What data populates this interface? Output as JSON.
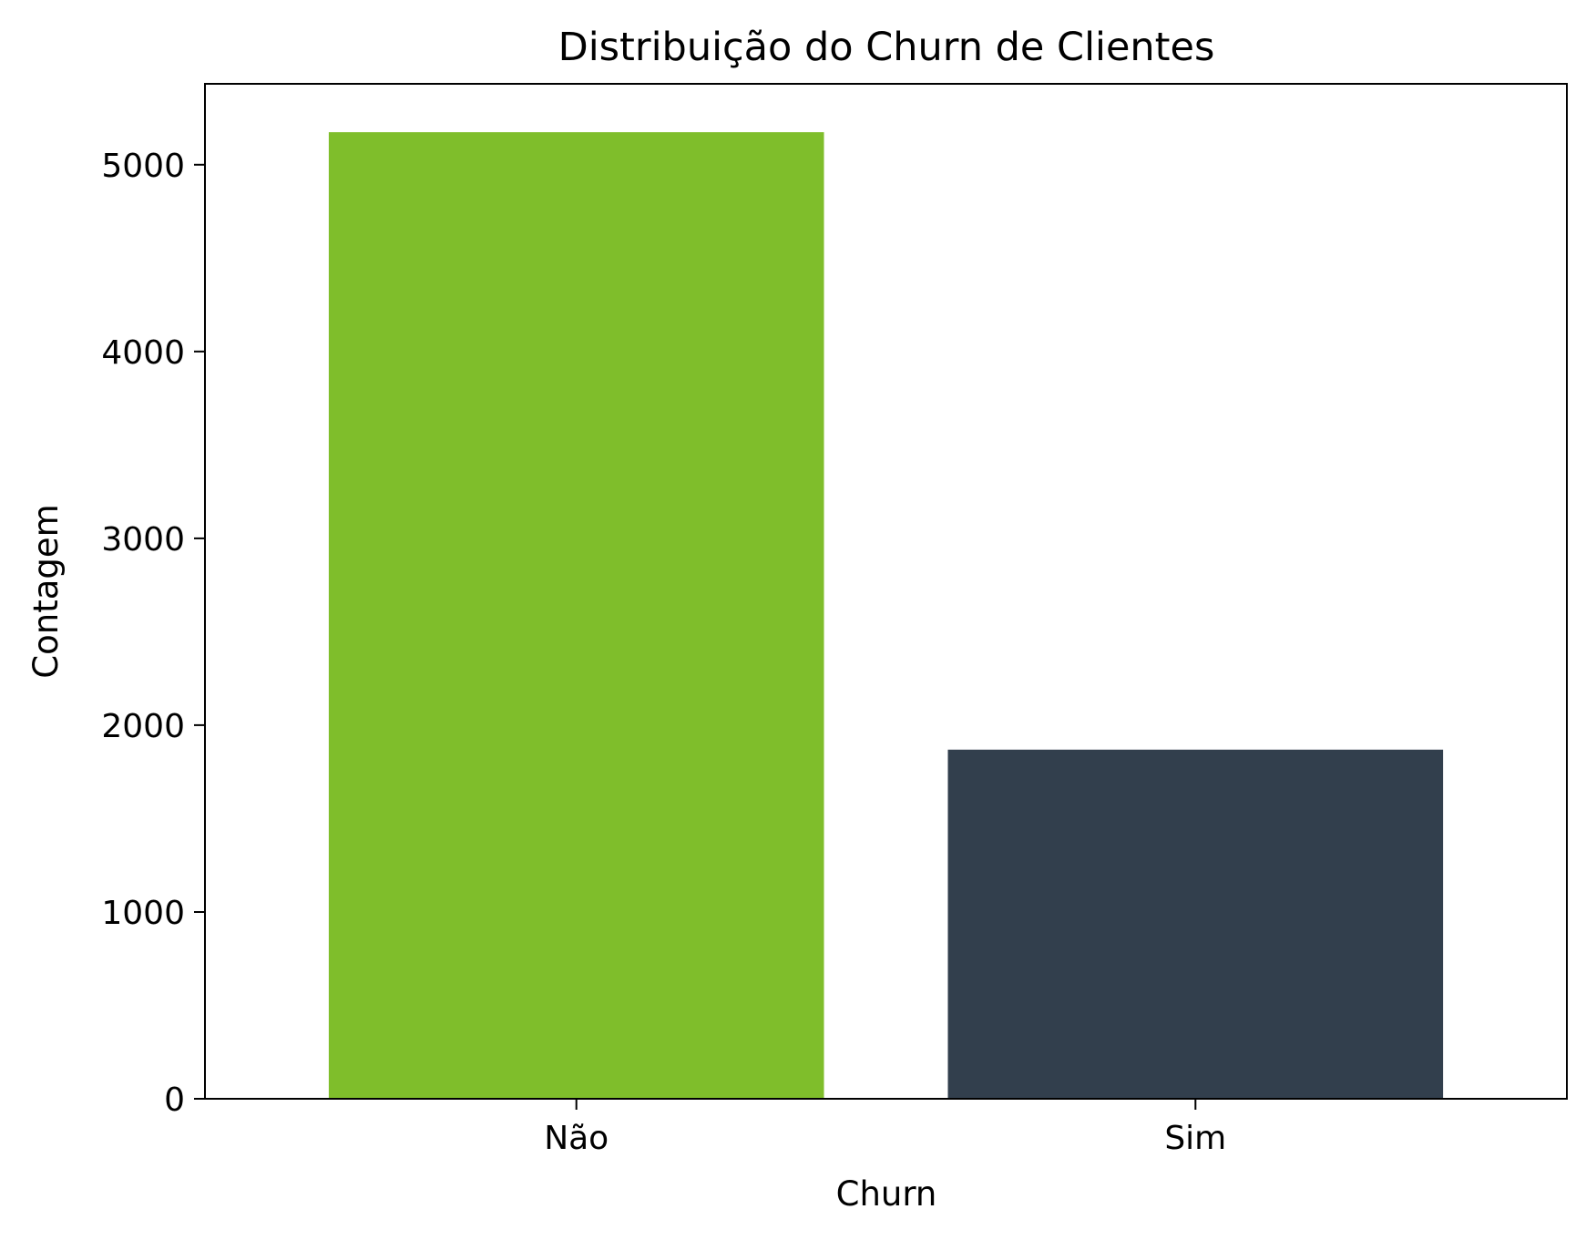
{
  "chart_data": {
    "type": "bar",
    "title": "Distribuição do Churn de Clientes",
    "xlabel": "Churn",
    "ylabel": "Contagem",
    "categories": [
      "Não",
      "Sim"
    ],
    "values": [
      5174,
      1869
    ],
    "colors": [
      "#7fbe2b",
      "#323f4d"
    ],
    "ylim": [
      0,
      5433
    ],
    "yticks": [
      0,
      1000,
      2000,
      3000,
      4000,
      5000
    ],
    "grid": false
  }
}
